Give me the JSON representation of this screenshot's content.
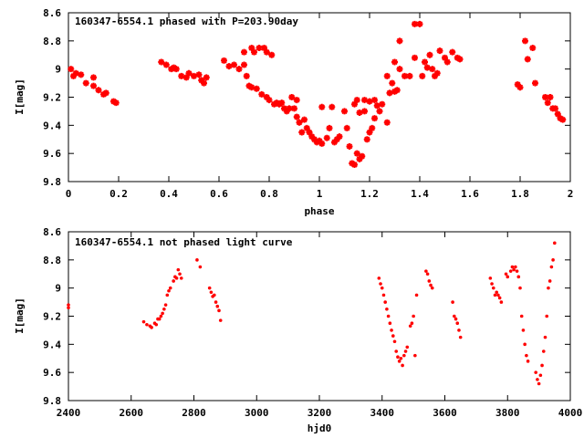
{
  "chart_data": [
    {
      "type": "scatter",
      "title": "160347-6554.1 phased with P=203.90day",
      "xlabel": "phase",
      "ylabel": "I[mag]",
      "xlim": [
        0,
        2
      ],
      "ylim": [
        8.6,
        9.8
      ],
      "y_inverted": true,
      "xticks": [
        "0",
        "0.2",
        "0.4",
        "0.6",
        "0.8",
        "1",
        "1.2",
        "1.4",
        "1.6",
        "1.8",
        "2"
      ],
      "yticks": [
        "8.6",
        "8.8",
        "9",
        "9.2",
        "9.4",
        "9.6",
        "9.8"
      ],
      "marker_color": "#ff0000",
      "marker": "plus",
      "grid": false,
      "points": [
        [
          0.01,
          9.0
        ],
        [
          0.02,
          9.05
        ],
        [
          0.03,
          9.03
        ],
        [
          0.05,
          9.04
        ],
        [
          0.07,
          9.1
        ],
        [
          0.1,
          9.06
        ],
        [
          0.1,
          9.12
        ],
        [
          0.12,
          9.15
        ],
        [
          0.14,
          9.18
        ],
        [
          0.15,
          9.17
        ],
        [
          0.18,
          9.23
        ],
        [
          0.19,
          9.24
        ],
        [
          0.37,
          8.95
        ],
        [
          0.39,
          8.97
        ],
        [
          0.41,
          9.0
        ],
        [
          0.42,
          8.99
        ],
        [
          0.43,
          9.0
        ],
        [
          0.45,
          9.05
        ],
        [
          0.47,
          9.06
        ],
        [
          0.48,
          9.03
        ],
        [
          0.5,
          9.05
        ],
        [
          0.52,
          9.04
        ],
        [
          0.53,
          9.08
        ],
        [
          0.54,
          9.1
        ],
        [
          0.55,
          9.06
        ],
        [
          0.62,
          8.94
        ],
        [
          0.64,
          8.98
        ],
        [
          0.66,
          8.97
        ],
        [
          0.68,
          9.0
        ],
        [
          0.7,
          8.88
        ],
        [
          0.7,
          8.97
        ],
        [
          0.71,
          9.05
        ],
        [
          0.72,
          9.12
        ],
        [
          0.73,
          8.85
        ],
        [
          0.73,
          9.13
        ],
        [
          0.74,
          8.88
        ],
        [
          0.75,
          9.14
        ],
        [
          0.76,
          8.85
        ],
        [
          0.77,
          9.18
        ],
        [
          0.78,
          8.85
        ],
        [
          0.79,
          8.88
        ],
        [
          0.79,
          9.2
        ],
        [
          0.8,
          9.22
        ],
        [
          0.81,
          8.9
        ],
        [
          0.82,
          9.25
        ],
        [
          0.83,
          9.24
        ],
        [
          0.84,
          9.25
        ],
        [
          0.85,
          9.24
        ],
        [
          0.86,
          9.28
        ],
        [
          0.87,
          9.3
        ],
        [
          0.88,
          9.28
        ],
        [
          0.89,
          9.2
        ],
        [
          0.9,
          9.28
        ],
        [
          0.91,
          9.34
        ],
        [
          0.91,
          9.22
        ],
        [
          0.92,
          9.38
        ],
        [
          0.93,
          9.45
        ],
        [
          0.94,
          9.36
        ],
        [
          0.95,
          9.42
        ],
        [
          0.96,
          9.45
        ],
        [
          0.97,
          9.48
        ],
        [
          0.98,
          9.5
        ],
        [
          0.99,
          9.52
        ],
        [
          1.0,
          9.51
        ],
        [
          1.01,
          9.53
        ],
        [
          1.01,
          9.27
        ],
        [
          1.03,
          9.49
        ],
        [
          1.04,
          9.42
        ],
        [
          1.05,
          9.27
        ],
        [
          1.06,
          9.52
        ],
        [
          1.07,
          9.5
        ],
        [
          1.08,
          9.48
        ],
        [
          1.1,
          9.3
        ],
        [
          1.11,
          9.42
        ],
        [
          1.12,
          9.55
        ],
        [
          1.13,
          9.67
        ],
        [
          1.14,
          9.68
        ],
        [
          1.14,
          9.25
        ],
        [
          1.15,
          9.22
        ],
        [
          1.15,
          9.6
        ],
        [
          1.16,
          9.64
        ],
        [
          1.16,
          9.31
        ],
        [
          1.17,
          9.62
        ],
        [
          1.18,
          9.22
        ],
        [
          1.18,
          9.3
        ],
        [
          1.19,
          9.5
        ],
        [
          1.2,
          9.23
        ],
        [
          1.2,
          9.45
        ],
        [
          1.21,
          9.42
        ],
        [
          1.22,
          9.22
        ],
        [
          1.22,
          9.35
        ],
        [
          1.23,
          9.26
        ],
        [
          1.24,
          9.3
        ],
        [
          1.25,
          9.25
        ],
        [
          1.27,
          9.38
        ],
        [
          1.27,
          9.05
        ],
        [
          1.28,
          9.17
        ],
        [
          1.29,
          9.1
        ],
        [
          1.3,
          9.16
        ],
        [
          1.3,
          8.95
        ],
        [
          1.31,
          9.15
        ],
        [
          1.32,
          9.0
        ],
        [
          1.32,
          8.8
        ],
        [
          1.34,
          9.05
        ],
        [
          1.36,
          9.05
        ],
        [
          1.38,
          8.92
        ],
        [
          1.38,
          8.68
        ],
        [
          1.4,
          8.68
        ],
        [
          1.41,
          9.05
        ],
        [
          1.42,
          8.95
        ],
        [
          1.43,
          8.99
        ],
        [
          1.44,
          8.9
        ],
        [
          1.45,
          9.0
        ],
        [
          1.46,
          9.05
        ],
        [
          1.47,
          9.03
        ],
        [
          1.48,
          8.87
        ],
        [
          1.5,
          8.92
        ],
        [
          1.51,
          8.95
        ],
        [
          1.53,
          8.88
        ],
        [
          1.55,
          8.92
        ],
        [
          1.56,
          8.93
        ],
        [
          1.79,
          9.11
        ],
        [
          1.8,
          9.13
        ],
        [
          1.82,
          8.8
        ],
        [
          1.83,
          8.93
        ],
        [
          1.85,
          8.85
        ],
        [
          1.86,
          9.1
        ],
        [
          1.9,
          9.2
        ],
        [
          1.91,
          9.24
        ],
        [
          1.92,
          9.2
        ],
        [
          1.93,
          9.28
        ],
        [
          1.94,
          9.28
        ],
        [
          1.95,
          9.32
        ],
        [
          1.96,
          9.35
        ],
        [
          1.97,
          9.36
        ]
      ]
    },
    {
      "type": "scatter",
      "title": "160347-6554.1 not phased light curve",
      "xlabel": "hjd0",
      "ylabel": "I[mag]",
      "xlim": [
        2400,
        4000
      ],
      "ylim": [
        8.6,
        9.8
      ],
      "y_inverted": true,
      "xticks": [
        "2400",
        "2600",
        "2800",
        "3000",
        "3200",
        "3400",
        "3600",
        "3800",
        "4000"
      ],
      "yticks": [
        "8.6",
        "8.8",
        "9",
        "9.2",
        "9.4",
        "9.6",
        "9.8"
      ],
      "marker_color": "#ff0000",
      "marker": "dot",
      "grid": false,
      "points": [
        [
          2400,
          9.12
        ],
        [
          2400,
          9.14
        ],
        [
          2640,
          9.24
        ],
        [
          2650,
          9.26
        ],
        [
          2660,
          9.27
        ],
        [
          2665,
          9.28
        ],
        [
          2675,
          9.25
        ],
        [
          2680,
          9.26
        ],
        [
          2685,
          9.22
        ],
        [
          2690,
          9.22
        ],
        [
          2695,
          9.2
        ],
        [
          2700,
          9.18
        ],
        [
          2705,
          9.15
        ],
        [
          2710,
          9.12
        ],
        [
          2715,
          9.05
        ],
        [
          2720,
          9.02
        ],
        [
          2725,
          9.0
        ],
        [
          2735,
          8.95
        ],
        [
          2740,
          8.92
        ],
        [
          2745,
          8.93
        ],
        [
          2750,
          8.87
        ],
        [
          2755,
          8.9
        ],
        [
          2760,
          8.93
        ],
        [
          2810,
          8.8
        ],
        [
          2820,
          8.85
        ],
        [
          2850,
          9.0
        ],
        [
          2855,
          9.03
        ],
        [
          2860,
          9.06
        ],
        [
          2865,
          9.05
        ],
        [
          2870,
          9.1
        ],
        [
          2875,
          9.13
        ],
        [
          2880,
          9.16
        ],
        [
          2885,
          9.23
        ],
        [
          3390,
          8.93
        ],
        [
          3395,
          8.97
        ],
        [
          3400,
          9.0
        ],
        [
          3405,
          9.05
        ],
        [
          3410,
          9.1
        ],
        [
          3415,
          9.15
        ],
        [
          3420,
          9.2
        ],
        [
          3425,
          9.25
        ],
        [
          3430,
          9.3
        ],
        [
          3435,
          9.34
        ],
        [
          3440,
          9.38
        ],
        [
          3445,
          9.45
        ],
        [
          3450,
          9.49
        ],
        [
          3455,
          9.52
        ],
        [
          3460,
          9.5
        ],
        [
          3465,
          9.55
        ],
        [
          3470,
          9.48
        ],
        [
          3475,
          9.45
        ],
        [
          3480,
          9.42
        ],
        [
          3490,
          9.27
        ],
        [
          3495,
          9.25
        ],
        [
          3500,
          9.2
        ],
        [
          3505,
          9.48
        ],
        [
          3510,
          9.05
        ],
        [
          3540,
          8.88
        ],
        [
          3545,
          8.9
        ],
        [
          3550,
          8.95
        ],
        [
          3555,
          8.98
        ],
        [
          3560,
          9.0
        ],
        [
          3625,
          9.1
        ],
        [
          3630,
          9.2
        ],
        [
          3635,
          9.22
        ],
        [
          3640,
          9.25
        ],
        [
          3645,
          9.3
        ],
        [
          3650,
          9.35
        ],
        [
          3745,
          8.93
        ],
        [
          3750,
          8.97
        ],
        [
          3755,
          9.0
        ],
        [
          3760,
          9.05
        ],
        [
          3765,
          9.03
        ],
        [
          3770,
          9.05
        ],
        [
          3775,
          9.07
        ],
        [
          3780,
          9.1
        ],
        [
          3795,
          8.9
        ],
        [
          3800,
          8.92
        ],
        [
          3810,
          8.88
        ],
        [
          3815,
          8.85
        ],
        [
          3820,
          8.87
        ],
        [
          3825,
          8.85
        ],
        [
          3830,
          8.88
        ],
        [
          3835,
          8.92
        ],
        [
          3840,
          9.0
        ],
        [
          3845,
          9.2
        ],
        [
          3850,
          9.3
        ],
        [
          3855,
          9.4
        ],
        [
          3860,
          9.48
        ],
        [
          3865,
          9.52
        ],
        [
          3890,
          9.6
        ],
        [
          3895,
          9.65
        ],
        [
          3900,
          9.68
        ],
        [
          3905,
          9.62
        ],
        [
          3910,
          9.55
        ],
        [
          3915,
          9.45
        ],
        [
          3920,
          9.35
        ],
        [
          3925,
          9.2
        ],
        [
          3930,
          9.0
        ],
        [
          3935,
          8.95
        ],
        [
          3940,
          8.85
        ],
        [
          3945,
          8.8
        ],
        [
          3950,
          8.68
        ]
      ]
    }
  ]
}
